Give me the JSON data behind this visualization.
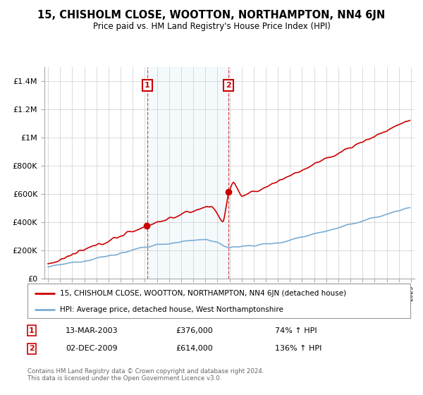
{
  "title": "15, CHISHOLM CLOSE, WOOTTON, NORTHAMPTON, NN4 6JN",
  "subtitle": "Price paid vs. HM Land Registry's House Price Index (HPI)",
  "legend_label_red": "15, CHISHOLM CLOSE, WOOTTON, NORTHAMPTON, NN4 6JN (detached house)",
  "legend_label_blue": "HPI: Average price, detached house, West Northamptonshire",
  "footer": "Contains HM Land Registry data © Crown copyright and database right 2024.\nThis data is licensed under the Open Government Licence v3.0.",
  "annotation1_date": "13-MAR-2003",
  "annotation1_price": "£376,000",
  "annotation1_hpi": "74% ↑ HPI",
  "annotation2_date": "02-DEC-2009",
  "annotation2_price": "£614,000",
  "annotation2_hpi": "136% ↑ HPI",
  "color_red": "#cc0000",
  "color_blue": "#7aadd4",
  "color_annotation_box": "#cc0000",
  "yticks": [
    0,
    200000,
    400000,
    600000,
    800000,
    1000000,
    1200000,
    1400000
  ],
  "ytick_labels": [
    "£0",
    "£200K",
    "£400K",
    "£600K",
    "£800K",
    "£1M",
    "£1.2M",
    "£1.4M"
  ],
  "vline1_year": 2003.2,
  "vline2_year": 2009.92,
  "point1_year": 2003.2,
  "point1_value": 376000,
  "point2_year": 2009.92,
  "point2_value": 614000
}
